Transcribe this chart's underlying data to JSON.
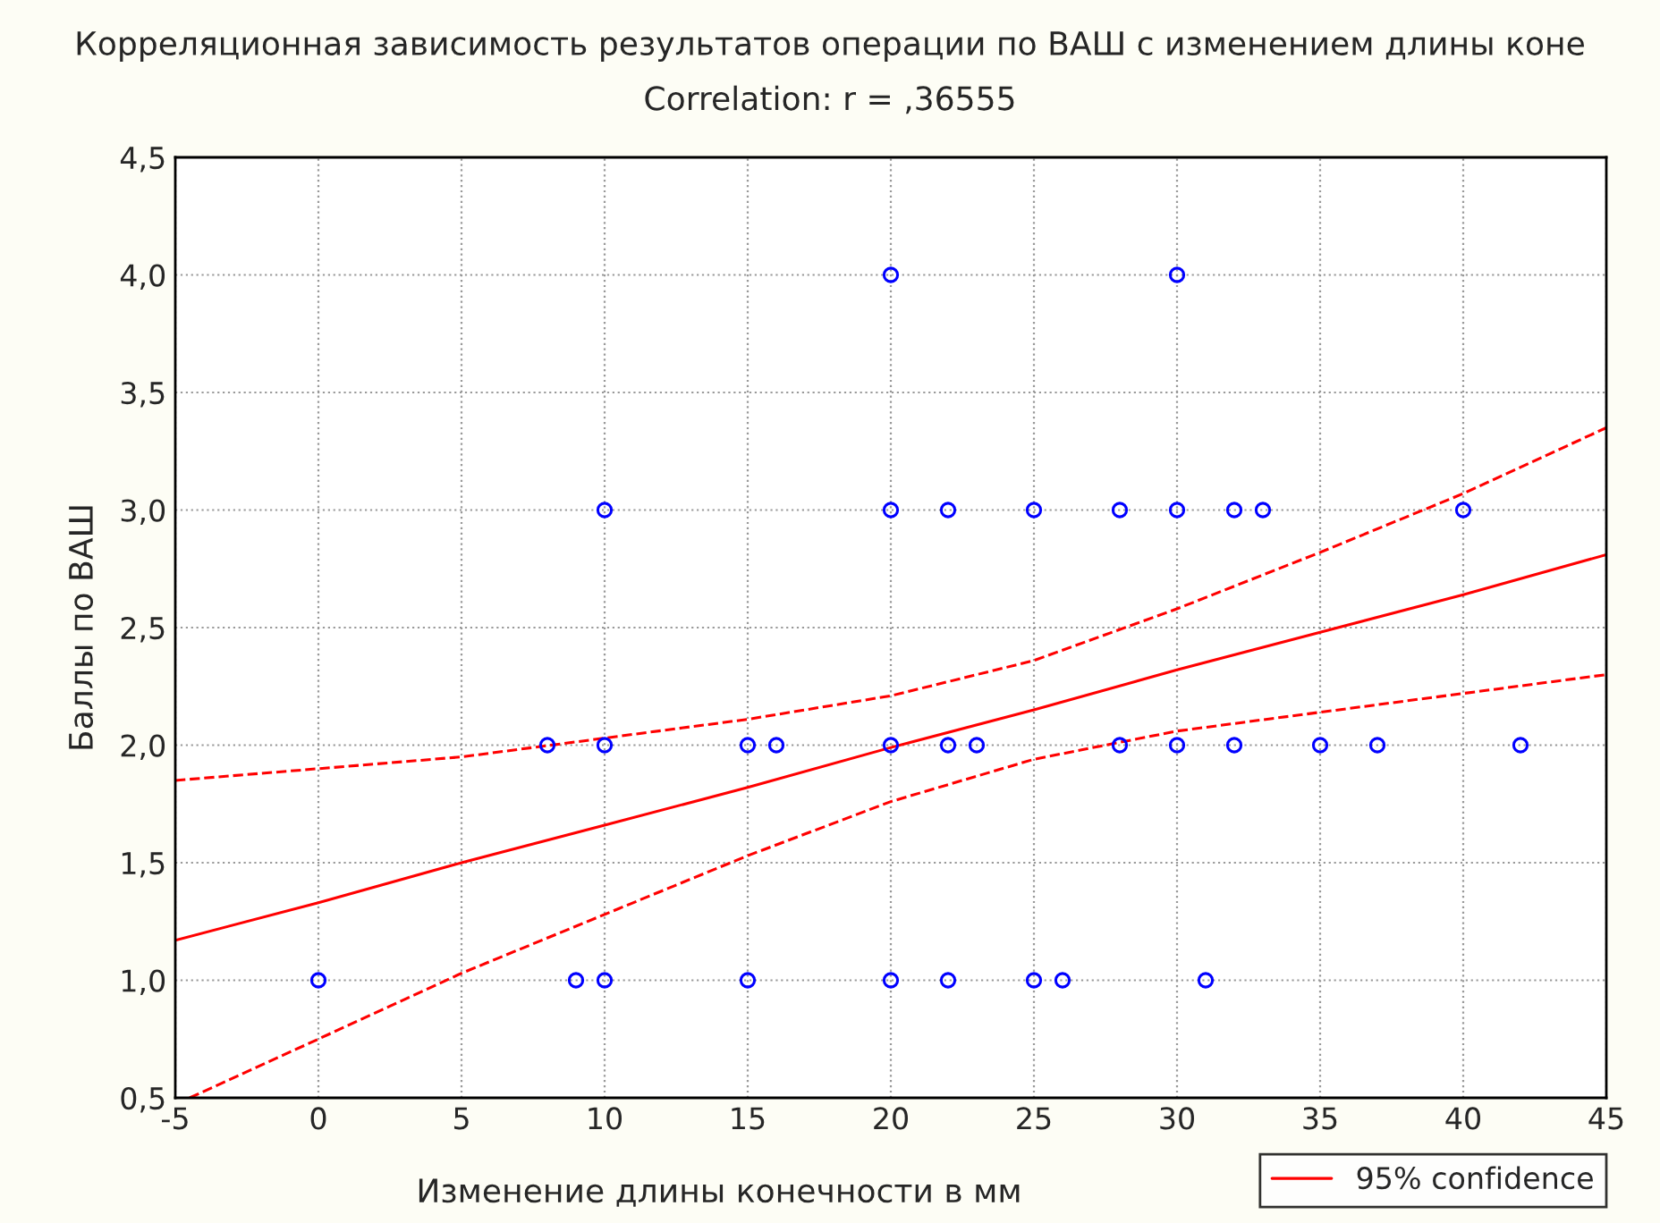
{
  "chart_data": {
    "type": "scatter",
    "title": "Корреляционная зависимость результатов операции по ВАШ с изменением длины коне",
    "subtitle": "Correlation: r = ,36555",
    "xlabel": "Изменение длины конечности в мм",
    "ylabel": "Баллы по ВАШ",
    "series": [
      {
        "color": "#0000ff",
        "marker": "circle",
        "x": [
          0,
          9,
          10,
          15,
          20,
          22,
          25,
          26,
          31,
          8,
          10,
          15,
          16,
          20,
          22,
          23,
          28,
          30,
          32,
          35,
          37,
          42,
          10,
          20,
          22,
          25,
          28,
          30,
          32,
          33,
          40,
          20,
          30
        ],
        "values": [
          1,
          1,
          1,
          1,
          1,
          1,
          1,
          1,
          1,
          2,
          2,
          2,
          2,
          2,
          2,
          2,
          2,
          2,
          2,
          2,
          2,
          2,
          3,
          3,
          3,
          3,
          3,
          3,
          3,
          3,
          3,
          4,
          4
        ]
      },
      {
        "type": "line",
        "name": "95% confidence",
        "color": "#ff0000",
        "line_style": "solid",
        "x": [
          -5,
          0,
          5,
          10,
          15,
          20,
          25,
          30,
          35,
          40,
          45
        ],
        "values": [
          1.17,
          1.33,
          1.5,
          1.66,
          1.82,
          1.99,
          2.15,
          2.32,
          2.48,
          2.64,
          2.81
        ]
      },
      {
        "type": "line",
        "color": "#ff0000",
        "line_style": "dashed",
        "x": [
          -5,
          0,
          5,
          10,
          15,
          20,
          25,
          30,
          35,
          40,
          45
        ],
        "values": [
          1.85,
          1.9,
          1.95,
          2.03,
          2.11,
          2.21,
          2.36,
          2.58,
          2.82,
          3.07,
          3.35
        ]
      },
      {
        "type": "line",
        "color": "#ff0000",
        "line_style": "dashed",
        "x": [
          -4.5,
          0,
          5,
          10,
          15,
          20,
          25,
          30,
          35,
          40,
          45
        ],
        "values": [
          0.5,
          0.75,
          1.03,
          1.28,
          1.53,
          1.76,
          1.94,
          2.06,
          2.14,
          2.22,
          2.3
        ]
      }
    ],
    "xlim": [
      -5,
      45
    ],
    "xticks": [
      -5,
      0,
      5,
      10,
      15,
      20,
      25,
      30,
      35,
      40,
      45
    ],
    "ylim": [
      0.5,
      4.5
    ],
    "yticks": [
      {
        "value": 0.5,
        "label": "0,5"
      },
      {
        "value": 1.0,
        "label": "1,0"
      },
      {
        "value": 1.5,
        "label": "1,5"
      },
      {
        "value": 2.0,
        "label": "2,0"
      },
      {
        "value": 2.5,
        "label": "2,5"
      },
      {
        "value": 3.0,
        "label": "3,0"
      },
      {
        "value": 3.5,
        "label": "3,5"
      },
      {
        "value": 4.0,
        "label": "4,0"
      },
      {
        "value": 4.5,
        "label": "4,5"
      }
    ],
    "grid": true,
    "legend": "bottom right"
  }
}
